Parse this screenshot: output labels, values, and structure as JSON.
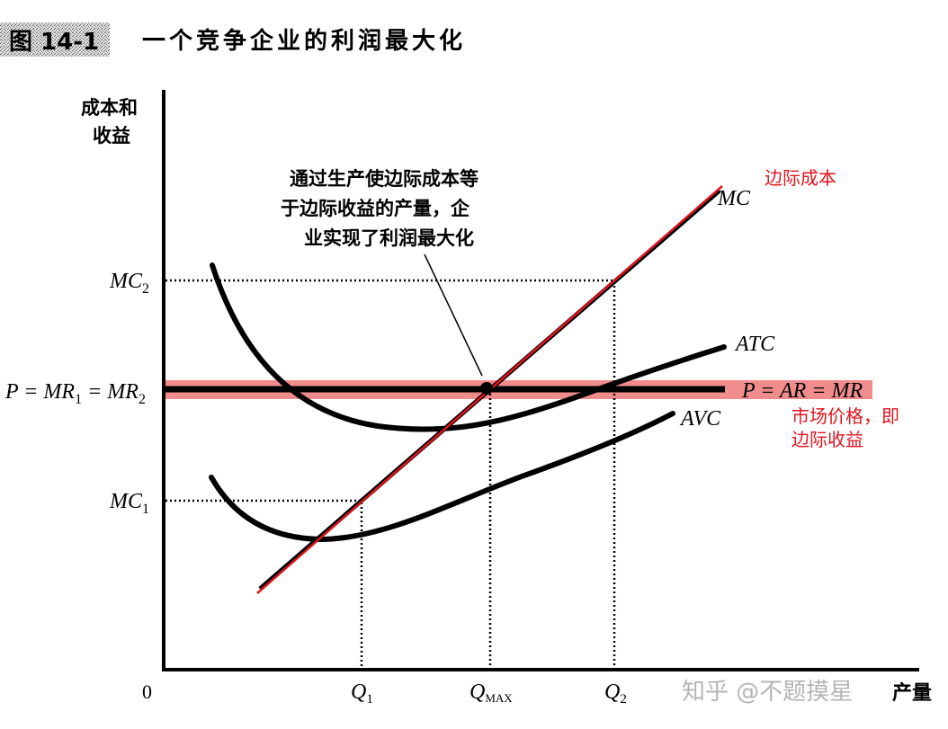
{
  "figure": {
    "number": "图 14-1",
    "title": "一个竞争企业的利润最大化"
  },
  "axes": {
    "y_label_line1": "成本和",
    "y_label_line2": "收益",
    "x_label": "产量",
    "origin": "0"
  },
  "y_ticks": {
    "mc2": "MC",
    "mc2_sub": "2",
    "price_p": "P = MR",
    "price_sub1": "1",
    "price_mid": " = MR",
    "price_sub2": "2",
    "mc1": "MC",
    "mc1_sub": "1"
  },
  "x_ticks": {
    "q1": "Q",
    "q1_sub": "1",
    "qmax": "Q",
    "qmax_sub": "MAX",
    "q2": "Q",
    "q2_sub": "2"
  },
  "curves": {
    "mc": "MC",
    "atc": "ATC",
    "avc": "AVC",
    "price_line": "P = AR = MR"
  },
  "annotation": {
    "line1": "通过生产使边际成本等",
    "line2": "于边际收益的产量，企",
    "line3": "业实现了利润最大化"
  },
  "red_notes": {
    "mc_note": "边际成本",
    "price_note_line1": "市场价格，即",
    "price_note_line2": "边际收益"
  },
  "watermark": "知乎 @不题摸星",
  "colors": {
    "red_line": "#e0141e",
    "pink_band": "#f08c8c",
    "ink": "#000000",
    "watermark": "#b4b4b4"
  }
}
